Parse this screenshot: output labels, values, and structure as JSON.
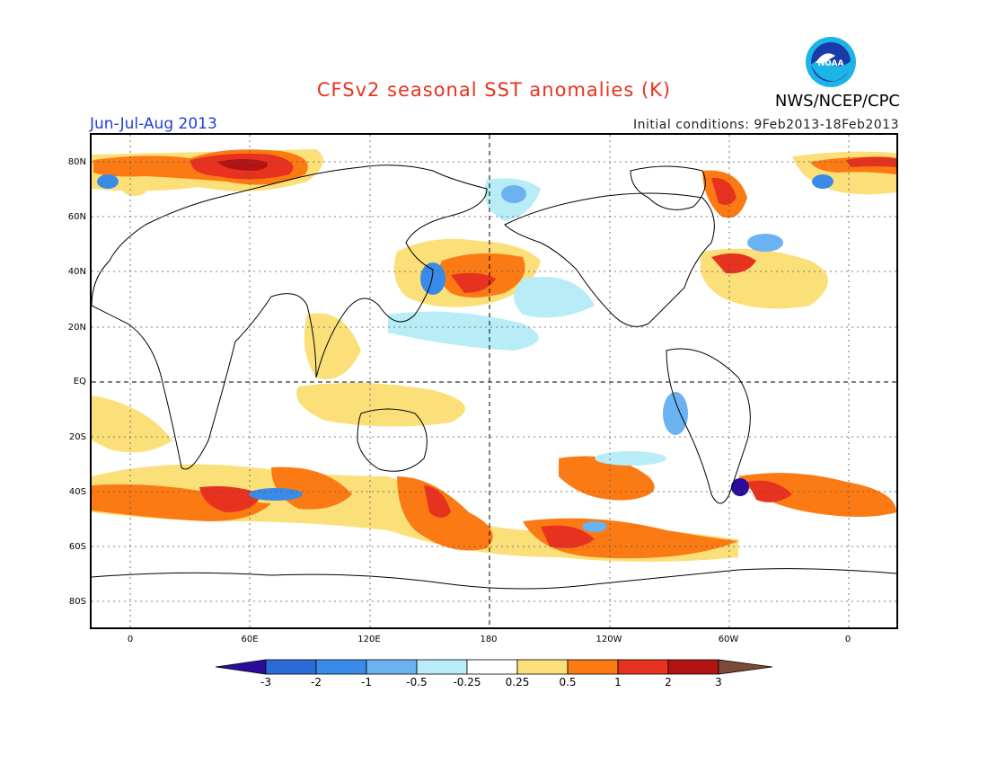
{
  "header": {
    "title": "CFSv2 seasonal SST anomalies (K)",
    "agency": "NWS/NCEP/CPC",
    "season": "Jun-Jul-Aug 2013",
    "initial_conditions": "Initial conditions: 9Feb2013-18Feb2013",
    "logo_text": "NOAA"
  },
  "map": {
    "lat_labels": [
      "80N",
      "60N",
      "40N",
      "20N",
      "EQ",
      "20S",
      "40S",
      "60S",
      "80S"
    ],
    "lon_labels": [
      "0",
      "60E",
      "120E",
      "180",
      "120W",
      "60W",
      "0"
    ]
  },
  "legend": {
    "tick_labels": [
      "-3",
      "-2",
      "-1",
      "-0.5",
      "-0.25",
      "0.25",
      "0.5",
      "1",
      "2",
      "3"
    ],
    "colors": [
      "#2a0e9a",
      "#2a6bd8",
      "#3a8be8",
      "#6ab2f2",
      "#b8ecf6",
      "#ffffff",
      "#fbe07a",
      "#fb7a14",
      "#e6321e",
      "#b21414",
      "#7c4a36"
    ]
  },
  "anomaly_colors": {
    "cold_strong": "#2a6bd8",
    "cold_weak": "#b8ecf6",
    "warm_weak": "#fbe07a",
    "warm": "#fb7a14",
    "warm_strong": "#e6321e"
  }
}
